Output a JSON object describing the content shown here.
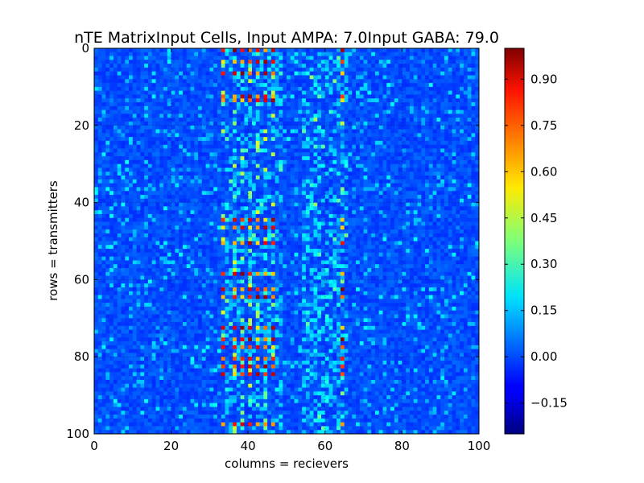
{
  "chart_data": {
    "type": "heatmap",
    "title": "nTE MatrixInput Cells, Input AMPA: 7.0Input GABA: 79.0",
    "xlabel": "columns = recievers",
    "ylabel": "rows = transmitters",
    "rows": 100,
    "cols": 100,
    "xlim": [
      0,
      100
    ],
    "ylim": [
      100,
      0
    ],
    "xticks": [
      0,
      20,
      40,
      60,
      80,
      100
    ],
    "yticks": [
      0,
      20,
      40,
      60,
      80,
      100
    ],
    "colormap": "jet",
    "colorbar": {
      "vmin": -0.25,
      "vmax": 1.0,
      "ticks": [
        -0.15,
        0.0,
        0.15,
        0.3,
        0.45,
        0.6,
        0.75,
        0.9
      ],
      "tick_labels": [
        "−0.15",
        "0.00",
        "0.15",
        "0.30",
        "0.45",
        "0.60",
        "0.75",
        "0.90"
      ]
    },
    "grid": true,
    "value_summary": {
      "background": 0.0,
      "high_columns": [
        33,
        36,
        38,
        40,
        42,
        44,
        46,
        64
      ],
      "high_rows": [
        0,
        3,
        6,
        12,
        13,
        44,
        46,
        50,
        58,
        62,
        64,
        72,
        75,
        77,
        80,
        82,
        84,
        97
      ],
      "approximate": true
    }
  }
}
